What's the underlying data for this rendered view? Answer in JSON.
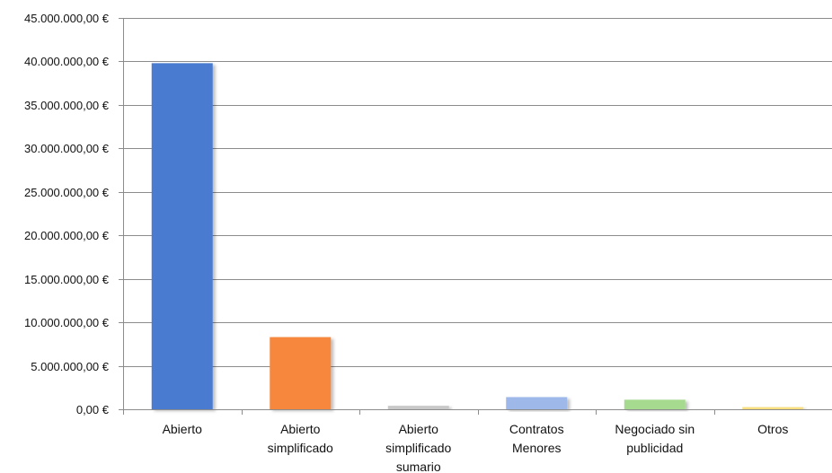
{
  "chart_data": {
    "type": "bar",
    "title": "",
    "xlabel": "",
    "ylabel": "",
    "ylim": [
      0,
      45000000
    ],
    "ytick_values": [
      0,
      5000000,
      10000000,
      15000000,
      20000000,
      25000000,
      30000000,
      35000000,
      40000000,
      45000000
    ],
    "ytick_labels": [
      "0,00 €",
      "5.000.000,00 €",
      "10.000.000,00 €",
      "15.000.000,00 €",
      "20.000.000,00 €",
      "25.000.000,00 €",
      "30.000.000,00 €",
      "35.000.000,00 €",
      "40.000.000,00 €",
      "45.000.000,00 €"
    ],
    "categories": [
      [
        "Abierto"
      ],
      [
        "Abierto",
        "simplificado"
      ],
      [
        "Abierto",
        "simplificado",
        "sumario"
      ],
      [
        "Contratos",
        "Menores"
      ],
      [
        "Negociado sin",
        "publicidad"
      ],
      [
        "Otros"
      ]
    ],
    "values": [
      39800000,
      8300000,
      400000,
      1400000,
      1100000,
      250000
    ],
    "colors": [
      "#4A7BD0",
      "#F7873D",
      "#C8C8C8",
      "#9DB8E9",
      "#A6DA8F",
      "#F9DE7F"
    ],
    "grid": true,
    "legend": "none"
  }
}
